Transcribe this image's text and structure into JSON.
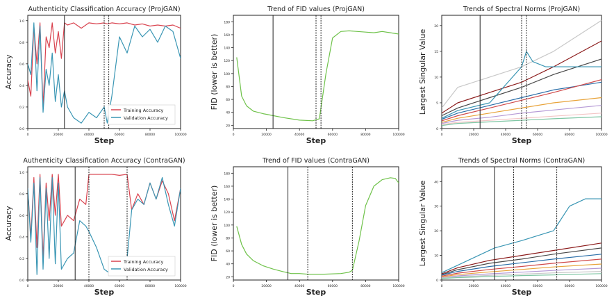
{
  "figure_caption": "",
  "colors": {
    "training": "#d9434f",
    "validation": "#3a96b4",
    "fid": "#6fc24a",
    "axis": "#222222",
    "vline": "#222222"
  },
  "chart_data": [
    {
      "id": "acc-projgan",
      "type": "line",
      "title": "Authenticity Classification Accuracy (ProjGAN)",
      "xlabel": "Step",
      "ylabel": "Accuracy",
      "xlim": [
        0,
        100000
      ],
      "ylim": [
        0,
        1.05
      ],
      "xticks": [
        0,
        20000,
        40000,
        60000,
        80000,
        100000
      ],
      "xtick_labels": [
        "0",
        "20000",
        "40000",
        "60000",
        "80000",
        "100000"
      ],
      "yticks": [
        0.0,
        0.2,
        0.4,
        0.6,
        0.8,
        1.0
      ],
      "ytick_labels": [
        "0.0",
        "0.2",
        "0.4",
        "0.6",
        "0.8",
        "1.0"
      ],
      "legend": "lower-right",
      "vlines": [
        {
          "x": 24000,
          "style": "solid"
        },
        {
          "x": 50000,
          "style": "dashed"
        },
        {
          "x": 53000,
          "style": "dashed"
        }
      ],
      "series": [
        {
          "name": "Training Accuracy",
          "color": "#d9434f",
          "x": [
            0,
            2000,
            4000,
            6000,
            8000,
            10000,
            12000,
            14000,
            16000,
            18000,
            20000,
            22000,
            24000,
            26000,
            30000,
            35000,
            40000,
            45000,
            50000,
            52000,
            55000,
            60000,
            65000,
            70000,
            75000,
            80000,
            85000,
            90000,
            95000,
            100000
          ],
          "values": [
            0.45,
            0.3,
            0.95,
            0.6,
            0.98,
            0.2,
            0.85,
            0.75,
            0.98,
            0.7,
            0.9,
            0.65,
            0.98,
            0.96,
            0.98,
            0.93,
            0.98,
            0.97,
            0.98,
            0.97,
            0.98,
            0.97,
            0.98,
            0.96,
            0.97,
            0.95,
            0.96,
            0.95,
            0.96,
            0.93
          ]
        },
        {
          "name": "Validation Accuracy",
          "color": "#3a96b4",
          "x": [
            0,
            2000,
            4000,
            6000,
            8000,
            10000,
            12000,
            14000,
            16000,
            18000,
            20000,
            22000,
            24000,
            26000,
            30000,
            35000,
            40000,
            45000,
            50000,
            52000,
            55000,
            60000,
            65000,
            70000,
            75000,
            80000,
            85000,
            90000,
            95000,
            100000
          ],
          "values": [
            0.6,
            0.5,
            0.98,
            0.35,
            0.95,
            0.15,
            0.55,
            0.4,
            0.7,
            0.25,
            0.5,
            0.2,
            0.35,
            0.2,
            0.1,
            0.05,
            0.15,
            0.1,
            0.2,
            0.05,
            0.3,
            0.85,
            0.7,
            0.95,
            0.85,
            0.92,
            0.8,
            0.95,
            0.9,
            0.65
          ]
        }
      ]
    },
    {
      "id": "fid-projgan",
      "type": "line",
      "title": "Trend of FID values (ProjGAN)",
      "xlabel": "Step",
      "ylabel": "FID (lower is better)",
      "xlim": [
        0,
        100000
      ],
      "ylim": [
        15,
        190
      ],
      "xticks": [
        0,
        20000,
        40000,
        60000,
        80000,
        100000
      ],
      "xtick_labels": [
        "0",
        "20000",
        "40000",
        "60000",
        "80000",
        "100000"
      ],
      "yticks": [
        20,
        40,
        60,
        80,
        100,
        120,
        140,
        160,
        180
      ],
      "ytick_labels": [
        "20",
        "40",
        "60",
        "80",
        "100",
        "120",
        "140",
        "160",
        "180"
      ],
      "vlines": [
        {
          "x": 24000,
          "style": "solid"
        },
        {
          "x": 50000,
          "style": "dashed"
        },
        {
          "x": 53000,
          "style": "dashed"
        }
      ],
      "series": [
        {
          "name": "",
          "color": "#6fc24a",
          "x": [
            2000,
            5000,
            8000,
            12000,
            18000,
            24000,
            30000,
            40000,
            48000,
            52000,
            56000,
            60000,
            65000,
            70000,
            75000,
            80000,
            85000,
            90000,
            95000,
            100000
          ],
          "values": [
            125,
            65,
            50,
            42,
            38,
            35,
            32,
            28,
            27,
            30,
            100,
            155,
            165,
            166,
            165,
            164,
            163,
            165,
            163,
            161
          ]
        }
      ]
    },
    {
      "id": "sn-projgan",
      "type": "line",
      "title": "Trends of Spectral Norms (ProjGAN)",
      "xlabel": "Step",
      "ylabel": "Largest Singular Value",
      "xlim": [
        0,
        100000
      ],
      "ylim": [
        0,
        22
      ],
      "xticks": [
        0,
        20000,
        40000,
        60000,
        80000,
        100000
      ],
      "xtick_labels": [
        "0",
        "20000",
        "40000",
        "60000",
        "80000",
        "100000"
      ],
      "yticks": [
        0,
        5,
        10,
        15,
        20
      ],
      "ytick_labels": [
        "0",
        "5",
        "10",
        "15",
        "20"
      ],
      "vlines": [
        {
          "x": 24000,
          "style": "solid"
        },
        {
          "x": 50000,
          "style": "dashed"
        },
        {
          "x": 53000,
          "style": "dashed"
        }
      ],
      "series": [
        {
          "name": "",
          "color": "#c8c8c8",
          "x": [
            0,
            10000,
            30000,
            50000,
            70000,
            100000
          ],
          "values": [
            4,
            8,
            10,
            12,
            15,
            21
          ]
        },
        {
          "name": "",
          "color": "#8b1a1a",
          "x": [
            0,
            10000,
            30000,
            50000,
            70000,
            100000
          ],
          "values": [
            3,
            5,
            7,
            9,
            12,
            17
          ]
        },
        {
          "name": "",
          "color": "#4a4a4a",
          "x": [
            0,
            10000,
            30000,
            50000,
            70000,
            100000
          ],
          "values": [
            2.5,
            4,
            6,
            8,
            10.5,
            13.5
          ]
        },
        {
          "name": "",
          "color": "#3a96b4",
          "x": [
            0,
            10000,
            30000,
            50000,
            53000,
            57000,
            65000,
            80000,
            100000
          ],
          "values": [
            2,
            3.5,
            5,
            12,
            15,
            13,
            12,
            12,
            12
          ]
        },
        {
          "name": "",
          "color": "#2a6ea8",
          "x": [
            0,
            10000,
            30000,
            50000,
            70000,
            100000
          ],
          "values": [
            1.8,
            3,
            4.5,
            6,
            7.5,
            9
          ]
        },
        {
          "name": "",
          "color": "#d04a4a",
          "x": [
            0,
            10000,
            30000,
            50000,
            70000,
            100000
          ],
          "values": [
            1.5,
            2.5,
            4,
            5.5,
            7,
            9.5
          ]
        },
        {
          "name": "",
          "color": "#e8a33a",
          "x": [
            0,
            10000,
            30000,
            50000,
            70000,
            100000
          ],
          "values": [
            1.2,
            2,
            3,
            4,
            5,
            6
          ]
        },
        {
          "name": "",
          "color": "#b59ad6",
          "x": [
            0,
            10000,
            30000,
            50000,
            70000,
            100000
          ],
          "values": [
            1,
            1.6,
            2.2,
            3,
            3.6,
            4.5
          ]
        },
        {
          "name": "",
          "color": "#f3c6c6",
          "x": [
            0,
            10000,
            30000,
            50000,
            70000,
            100000
          ],
          "values": [
            0.8,
            1.2,
            1.6,
            2,
            2.4,
            3
          ]
        },
        {
          "name": "",
          "color": "#7fc6a4",
          "x": [
            0,
            10000,
            30000,
            50000,
            70000,
            100000
          ],
          "values": [
            0.6,
            1,
            1.3,
            1.6,
            1.9,
            2.3
          ]
        }
      ]
    },
    {
      "id": "acc-contragan",
      "type": "line",
      "title": "Authenticity Classification Accuracy (ContraGAN)",
      "xlabel": "Step",
      "ylabel": "Accuracy",
      "xlim": [
        0,
        100000
      ],
      "ylim": [
        0,
        1.05
      ],
      "xticks": [
        0,
        20000,
        40000,
        60000,
        80000,
        100000
      ],
      "xtick_labels": [
        "0",
        "20000",
        "40000",
        "60000",
        "80000",
        "100000"
      ],
      "yticks": [
        0.0,
        0.2,
        0.4,
        0.6,
        0.8,
        1.0
      ],
      "ytick_labels": [
        "0.0",
        "0.2",
        "0.4",
        "0.6",
        "0.8",
        "1.0"
      ],
      "legend": "lower-right",
      "vlines": [
        {
          "x": 31000,
          "style": "solid"
        },
        {
          "x": 40000,
          "style": "dashed"
        },
        {
          "x": 65000,
          "style": "dashed"
        }
      ],
      "series": [
        {
          "name": "Training Accuracy",
          "color": "#d9434f",
          "x": [
            0,
            2000,
            4000,
            6000,
            8000,
            10000,
            12000,
            14000,
            16000,
            18000,
            20000,
            22000,
            26000,
            30000,
            34000,
            38000,
            40000,
            45000,
            50000,
            55000,
            60000,
            65000,
            68000,
            72000,
            76000,
            80000,
            84000,
            88000,
            92000,
            96000,
            100000
          ],
          "values": [
            0.85,
            0.4,
            0.95,
            0.3,
            0.98,
            0.2,
            0.9,
            0.55,
            0.98,
            0.6,
            0.98,
            0.5,
            0.6,
            0.55,
            0.75,
            0.7,
            0.98,
            0.98,
            0.98,
            0.98,
            0.97,
            0.98,
            0.65,
            0.8,
            0.7,
            0.9,
            0.75,
            0.92,
            0.8,
            0.55,
            0.85
          ]
        },
        {
          "name": "Validation Accuracy",
          "color": "#3a96b4",
          "x": [
            0,
            2000,
            4000,
            6000,
            8000,
            10000,
            12000,
            14000,
            16000,
            18000,
            20000,
            22000,
            26000,
            30000,
            34000,
            38000,
            40000,
            45000,
            50000,
            55000,
            60000,
            65000,
            68000,
            72000,
            76000,
            80000,
            84000,
            88000,
            92000,
            96000,
            100000
          ],
          "values": [
            0.85,
            0.35,
            0.9,
            0.05,
            0.95,
            0.1,
            0.85,
            0.2,
            0.95,
            0.15,
            0.9,
            0.1,
            0.2,
            0.25,
            0.55,
            0.5,
            0.45,
            0.3,
            0.1,
            0.05,
            0.1,
            0.2,
            0.65,
            0.75,
            0.7,
            0.9,
            0.75,
            0.95,
            0.7,
            0.5,
            0.85
          ]
        }
      ]
    },
    {
      "id": "fid-contragan",
      "type": "line",
      "title": "Trend of FID values (ContraGAN)",
      "xlabel": "Step",
      "ylabel": "FID (lower is better)",
      "xlim": [
        0,
        100000
      ],
      "ylim": [
        15,
        190
      ],
      "xticks": [
        0,
        20000,
        40000,
        60000,
        80000,
        100000
      ],
      "xtick_labels": [
        "0",
        "20000",
        "40000",
        "60000",
        "80000",
        "100000"
      ],
      "yticks": [
        20,
        40,
        60,
        80,
        100,
        120,
        140,
        160,
        180
      ],
      "ytick_labels": [
        "20",
        "40",
        "60",
        "80",
        "100",
        "120",
        "140",
        "160",
        "180"
      ],
      "vlines": [
        {
          "x": 33000,
          "style": "solid"
        },
        {
          "x": 45000,
          "style": "dashed"
        },
        {
          "x": 72000,
          "style": "dashed"
        }
      ],
      "series": [
        {
          "name": "",
          "color": "#6fc24a",
          "x": [
            2000,
            5000,
            8000,
            12000,
            18000,
            24000,
            30000,
            35000,
            40000,
            45000,
            55000,
            65000,
            70000,
            72000,
            76000,
            80000,
            85000,
            90000,
            95000,
            98000,
            100000
          ],
          "values": [
            98,
            70,
            55,
            45,
            37,
            32,
            28,
            25,
            25,
            24,
            24,
            25,
            27,
            30,
            75,
            130,
            160,
            170,
            173,
            172,
            165
          ]
        }
      ]
    },
    {
      "id": "sn-contragan",
      "type": "line",
      "title": "Trends of Spectral Norms (ContraGAN)",
      "xlabel": "Step",
      "ylabel": "Largest Singular Value",
      "xlim": [
        0,
        100000
      ],
      "ylim": [
        0,
        46
      ],
      "xticks": [
        0,
        20000,
        40000,
        60000,
        80000,
        100000
      ],
      "xtick_labels": [
        "0",
        "20000",
        "40000",
        "60000",
        "80000",
        "100000"
      ],
      "yticks": [
        0,
        10,
        20,
        30,
        40
      ],
      "ytick_labels": [
        "0",
        "10",
        "20",
        "30",
        "40"
      ],
      "vlines": [
        {
          "x": 33000,
          "style": "solid"
        },
        {
          "x": 45000,
          "style": "dashed"
        },
        {
          "x": 72000,
          "style": "dashed"
        }
      ],
      "series": [
        {
          "name": "",
          "color": "#3a96b4",
          "x": [
            0,
            10000,
            33000,
            50000,
            70000,
            72000,
            80000,
            90000,
            100000
          ],
          "values": [
            3,
            6,
            13,
            16,
            20,
            22,
            30,
            33,
            33
          ]
        },
        {
          "name": "",
          "color": "#8b1a1a",
          "x": [
            0,
            10000,
            30000,
            50000,
            70000,
            100000
          ],
          "values": [
            2.5,
            5,
            8,
            10,
            12,
            15
          ]
        },
        {
          "name": "",
          "color": "#4a4a4a",
          "x": [
            0,
            10000,
            30000,
            50000,
            70000,
            100000
          ],
          "values": [
            2.2,
            4.2,
            6.8,
            8.5,
            10.5,
            13
          ]
        },
        {
          "name": "",
          "color": "#2a6ea8",
          "x": [
            0,
            10000,
            30000,
            50000,
            70000,
            100000
          ],
          "values": [
            2,
            3.5,
            5.5,
            7,
            8.5,
            10.5
          ]
        },
        {
          "name": "",
          "color": "#d04a4a",
          "x": [
            0,
            10000,
            30000,
            50000,
            70000,
            100000
          ],
          "values": [
            1.6,
            2.8,
            4.3,
            5.5,
            6.8,
            8.5
          ]
        },
        {
          "name": "",
          "color": "#e8a33a",
          "x": [
            0,
            10000,
            30000,
            50000,
            70000,
            100000
          ],
          "values": [
            1.3,
            2.2,
            3.3,
            4.3,
            5.3,
            6.5
          ]
        },
        {
          "name": "",
          "color": "#b59ad6",
          "x": [
            0,
            10000,
            30000,
            50000,
            70000,
            100000
          ],
          "values": [
            1,
            1.7,
            2.5,
            3.2,
            3.9,
            4.8
          ]
        },
        {
          "name": "",
          "color": "#c8c8c8",
          "x": [
            0,
            10000,
            30000,
            50000,
            70000,
            100000
          ],
          "values": [
            0.8,
            1.3,
            1.9,
            2.4,
            2.9,
            3.5
          ]
        },
        {
          "name": "",
          "color": "#7fc6a4",
          "x": [
            0,
            10000,
            30000,
            50000,
            70000,
            100000
          ],
          "values": [
            0.6,
            1,
            1.4,
            1.8,
            2.1,
            2.6
          ]
        }
      ]
    }
  ]
}
